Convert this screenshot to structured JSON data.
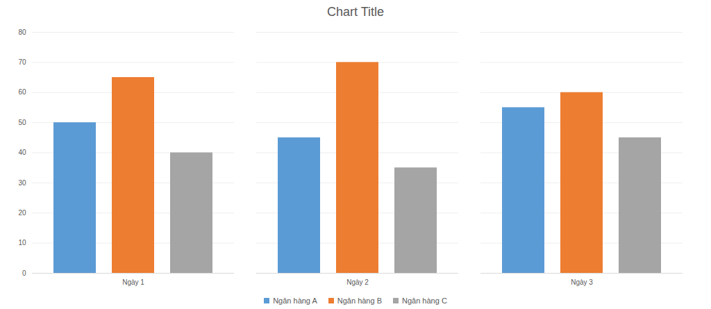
{
  "chart_data": {
    "type": "bar",
    "title": "Chart Title",
    "categories": [
      "Ngày 1",
      "Ngày 2",
      "Ngày 3"
    ],
    "series": [
      {
        "name": "Ngân hàng A",
        "color": "#5b9bd5",
        "values": [
          50,
          45,
          55
        ]
      },
      {
        "name": "Ngân hàng B",
        "color": "#ed7d31",
        "values": [
          65,
          70,
          60
        ]
      },
      {
        "name": "Ngân hàng C",
        "color": "#a5a5a5",
        "values": [
          40,
          35,
          45
        ]
      }
    ],
    "ylim": [
      0,
      80
    ],
    "yticks": [
      0,
      10,
      20,
      30,
      40,
      50,
      60,
      70,
      80
    ],
    "grid": true,
    "legend": "bottom"
  }
}
